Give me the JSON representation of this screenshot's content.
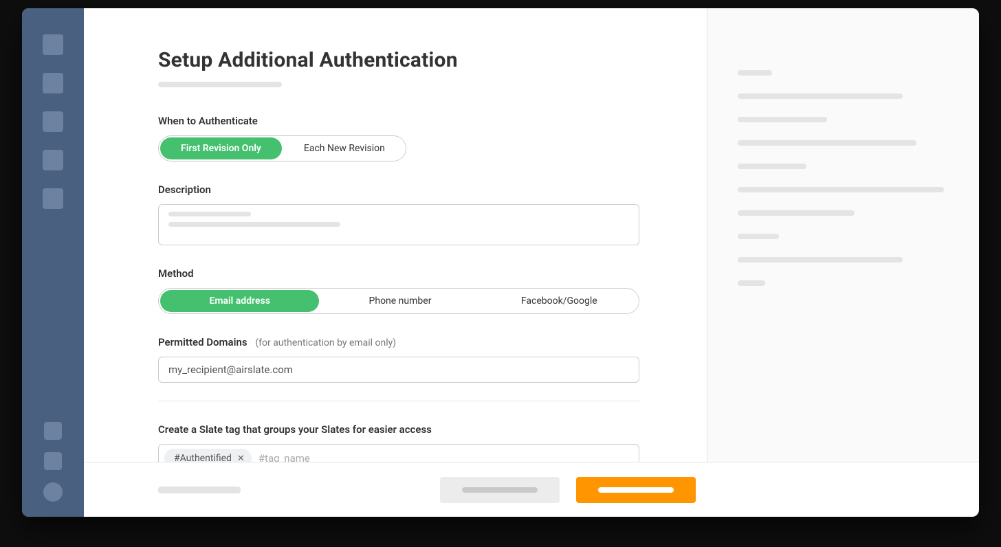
{
  "page": {
    "title": "Setup Additional Authentication"
  },
  "sections": {
    "when_label": "When to Authenticate",
    "when_options": {
      "first": "First Revision Only",
      "each": "Each New Revision"
    },
    "description_label": "Description",
    "method_label": "Method",
    "method_options": {
      "email": "Email address",
      "phone": "Phone number",
      "social": "Facebook/Google"
    },
    "permitted_label": "Permitted Domains",
    "permitted_hint": "(for authentication by email only)",
    "permitted_value": "my_recipient@airslate.com",
    "tag_label": "Create a Slate tag that groups your Slates for easier access",
    "tag_chip": "#Authentified",
    "tag_placeholder": "#tag_name"
  },
  "colors": {
    "sidebar_bg": "#4a6080",
    "accent_green": "#44c06e",
    "accent_orange": "#ff9500"
  },
  "right_skeleton_widths": [
    50,
    240,
    130,
    260,
    100,
    300,
    170,
    60,
    240,
    40
  ],
  "description_skeleton_widths": [
    120,
    250
  ]
}
